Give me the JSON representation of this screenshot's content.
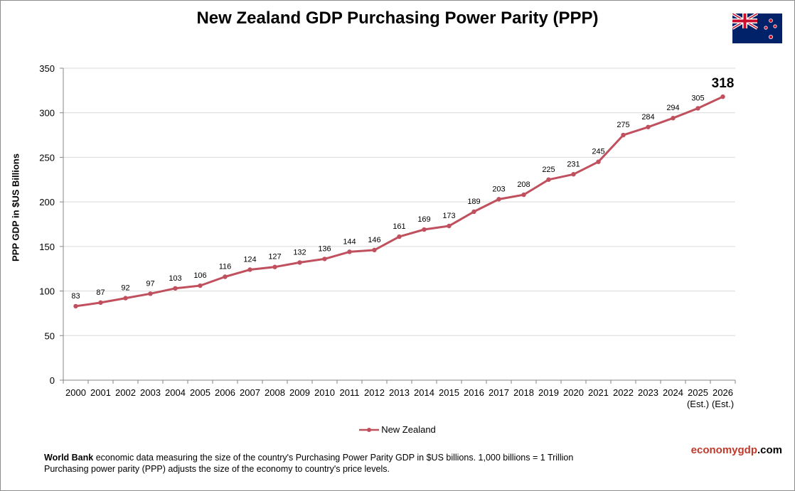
{
  "title": "New Zealand GDP Purchasing Power Parity (PPP)",
  "flag_icon": "new-zealand-flag",
  "colors": {
    "series": "#c0505e",
    "grid": "#d9d9d9",
    "axis": "#868686",
    "brand_accent": "#c0392b"
  },
  "legend": {
    "label": "New Zealand",
    "position": "bottom-center"
  },
  "footnote": {
    "source": "World Bank",
    "line1": " economic data measuring the size of the country's Purchasing Power Parity GDP in $US billions. 1,000 billions = 1 Trillion",
    "line2": "Purchasing power parity (PPP) adjusts the size of the economy to country's price levels."
  },
  "brand": {
    "part1": "economygdp",
    "part2": ".com"
  },
  "chart_data": {
    "type": "line",
    "title": "New Zealand GDP Purchasing Power Parity (PPP)",
    "xlabel": "",
    "ylabel": "PPP GDP in $US Billions",
    "ylim": [
      0,
      350
    ],
    "yticks": [
      0,
      50,
      100,
      150,
      200,
      250,
      300,
      350
    ],
    "grid": true,
    "categories": [
      "2000",
      "2001",
      "2002",
      "2003",
      "2004",
      "2005",
      "2006",
      "2007",
      "2008",
      "2009",
      "2010",
      "2011",
      "2012",
      "2013",
      "2014",
      "2015",
      "2016",
      "2017",
      "2018",
      "2019",
      "2020",
      "2021",
      "2022",
      "2023",
      "2024",
      "2025",
      "2026"
    ],
    "category_sublabels": [
      "",
      "",
      "",
      "",
      "",
      "",
      "",
      "",
      "",
      "",
      "",
      "",
      "",
      "",
      "",
      "",
      "",
      "",
      "",
      "",
      "",
      "",
      "",
      "",
      "",
      "(Est.)",
      "(Est.)"
    ],
    "series": [
      {
        "name": "New Zealand",
        "values": [
          83,
          87,
          92,
          97,
          103,
          106,
          116,
          124,
          127,
          132,
          136,
          144,
          146,
          161,
          169,
          173,
          189,
          203,
          208,
          225,
          231,
          245,
          275,
          284,
          294,
          305,
          318
        ]
      }
    ],
    "highlight_last": true
  }
}
